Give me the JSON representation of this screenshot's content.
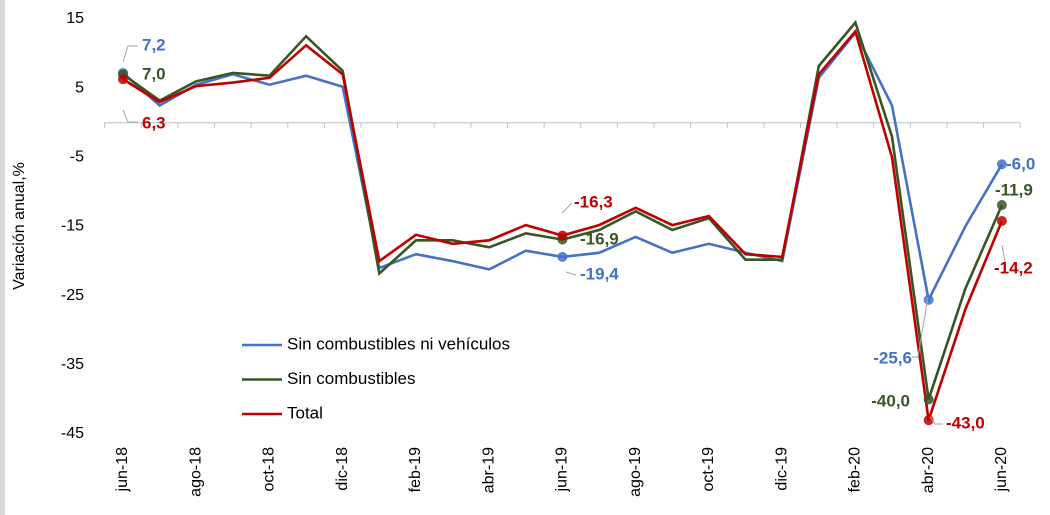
{
  "chart_data": {
    "type": "line",
    "y_label": "Variación anual,%",
    "categories": [
      "jun-18",
      null,
      "ago-18",
      null,
      "oct-18",
      null,
      "dic-18",
      null,
      "feb-19",
      null,
      "abr-19",
      null,
      "jun-19",
      null,
      "ago-19",
      null,
      "oct-19",
      null,
      "dic-19",
      null,
      "feb-20",
      null,
      "abr-20",
      null,
      "jun-20"
    ],
    "ylim": [
      -45,
      15
    ],
    "yticks": [
      15,
      5,
      -5,
      -15,
      -25,
      -35,
      -45
    ],
    "grid": false,
    "legend": "lower left",
    "series": [
      {
        "name": "Sin combustibles ni vehículos",
        "color": "#4472c4",
        "values": [
          7.2,
          2.5,
          5.5,
          7.0,
          5.5,
          6.8,
          5.2,
          -21.0,
          -19.0,
          -20.0,
          -21.2,
          -18.5,
          -19.4,
          -18.8,
          -16.5,
          -18.8,
          -17.5,
          -18.8,
          -20.0,
          6.5,
          13.0,
          2.5,
          -25.6,
          -15.0,
          -6.0
        ],
        "value_labels": [
          "7,2",
          null,
          null,
          null,
          null,
          null,
          null,
          null,
          null,
          null,
          null,
          null,
          "-19,4",
          null,
          null,
          null,
          null,
          null,
          null,
          null,
          null,
          null,
          "-25,6",
          null,
          "-6,0"
        ]
      },
      {
        "name": "Sin combustibles",
        "color": "#375623",
        "values": [
          7.0,
          3.2,
          6.0,
          7.2,
          6.8,
          12.5,
          7.5,
          -21.8,
          -17.0,
          -17.0,
          -18.0,
          -16.0,
          -16.9,
          -15.5,
          -12.8,
          -15.5,
          -13.8,
          -19.8,
          -19.8,
          8.2,
          14.5,
          -2.0,
          -40.0,
          -24.0,
          -11.9
        ],
        "value_labels": [
          "7,0",
          null,
          null,
          null,
          null,
          null,
          null,
          null,
          null,
          null,
          null,
          null,
          "-16,9",
          null,
          null,
          null,
          null,
          null,
          null,
          null,
          null,
          null,
          "-40,0",
          null,
          "-11,9"
        ]
      },
      {
        "name": "Total",
        "color": "#c00000",
        "values": [
          6.3,
          3.0,
          5.3,
          5.8,
          6.5,
          11.2,
          7.0,
          -20.0,
          -16.2,
          -17.5,
          -17.0,
          -14.8,
          -16.3,
          -14.8,
          -12.3,
          -14.8,
          -13.5,
          -19.0,
          -19.4,
          7.0,
          13.2,
          -5.0,
          -43.0,
          -27.0,
          -14.2
        ],
        "value_labels": [
          "6,3",
          null,
          null,
          null,
          null,
          null,
          null,
          null,
          null,
          null,
          null,
          null,
          "-16,3",
          null,
          null,
          null,
          null,
          null,
          null,
          null,
          null,
          null,
          "-43,0",
          null,
          "-14,2"
        ]
      }
    ]
  }
}
